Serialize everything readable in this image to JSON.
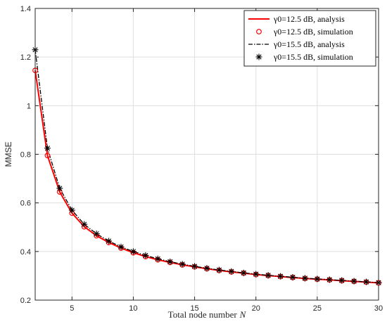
{
  "chart_data": {
    "type": "line",
    "xlabel": "Total node number",
    "xlabel_var": "N",
    "ylabel": "MMSE",
    "xlim": [
      2,
      30
    ],
    "ylim": [
      0.2,
      1.4
    ],
    "xticks": [
      5,
      10,
      15,
      20,
      25,
      30
    ],
    "yticks": [
      0.2,
      0.4,
      0.6,
      0.8,
      1,
      1.2,
      1.4
    ],
    "grid": true,
    "legend_position": "top-right",
    "x": [
      2,
      3,
      4,
      5,
      6,
      7,
      8,
      9,
      10,
      11,
      12,
      13,
      14,
      15,
      16,
      17,
      18,
      19,
      20,
      21,
      22,
      23,
      24,
      25,
      26,
      27,
      28,
      29,
      30
    ],
    "series": [
      {
        "name": "γ0=12.5 dB, analysis",
        "kind": "analysis",
        "style": "solid",
        "color": "#ff0000",
        "values": [
          1.145,
          0.795,
          0.645,
          0.558,
          0.502,
          0.465,
          0.437,
          0.414,
          0.395,
          0.379,
          0.366,
          0.355,
          0.345,
          0.337,
          0.329,
          0.322,
          0.316,
          0.311,
          0.305,
          0.301,
          0.297,
          0.293,
          0.289,
          0.286,
          0.283,
          0.28,
          0.277,
          0.274,
          0.271
        ]
      },
      {
        "name": "γ0=12.5 dB, simulation",
        "kind": "simulation",
        "marker": "circle",
        "color": "#ff0000",
        "values": [
          1.145,
          0.795,
          0.645,
          0.558,
          0.502,
          0.465,
          0.437,
          0.414,
          0.395,
          0.379,
          0.366,
          0.355,
          0.345,
          0.337,
          0.329,
          0.322,
          0.316,
          0.311,
          0.305,
          0.301,
          0.297,
          0.293,
          0.289,
          0.286,
          0.283,
          0.28,
          0.277,
          0.274,
          0.271
        ]
      },
      {
        "name": "γ0=15.5 dB, analysis",
        "kind": "analysis",
        "style": "dashdot",
        "color": "#000000",
        "values": [
          1.23,
          0.825,
          0.66,
          0.57,
          0.512,
          0.473,
          0.443,
          0.419,
          0.4,
          0.384,
          0.37,
          0.358,
          0.348,
          0.339,
          0.331,
          0.324,
          0.318,
          0.312,
          0.307,
          0.302,
          0.298,
          0.294,
          0.29,
          0.287,
          0.284,
          0.281,
          0.278,
          0.275,
          0.272
        ]
      },
      {
        "name": "γ0=15.5 dB, simulation",
        "kind": "simulation",
        "marker": "asterisk",
        "color": "#000000",
        "values": [
          1.23,
          0.825,
          0.66,
          0.57,
          0.512,
          0.473,
          0.443,
          0.419,
          0.4,
          0.384,
          0.37,
          0.358,
          0.348,
          0.339,
          0.331,
          0.324,
          0.318,
          0.312,
          0.307,
          0.302,
          0.298,
          0.294,
          0.29,
          0.287,
          0.284,
          0.281,
          0.278,
          0.275,
          0.272
        ]
      }
    ]
  }
}
